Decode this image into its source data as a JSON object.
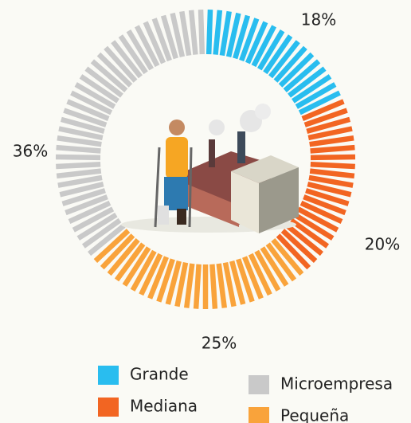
{
  "chart_data": {
    "type": "donut",
    "categories": [
      "Grande",
      "Mediana",
      "Pequeña",
      "Microempresa"
    ],
    "values": [
      18,
      20,
      25,
      36
    ],
    "value_labels": [
      "18%",
      "20%",
      "25%",
      "36%"
    ],
    "colors": [
      "#29bdef",
      "#f26522",
      "#f9a33b",
      "#c9c9c9"
    ],
    "label_colors": [
      "#29bdef",
      "#f26522",
      "#f9a33b",
      "#222222"
    ]
  }
}
